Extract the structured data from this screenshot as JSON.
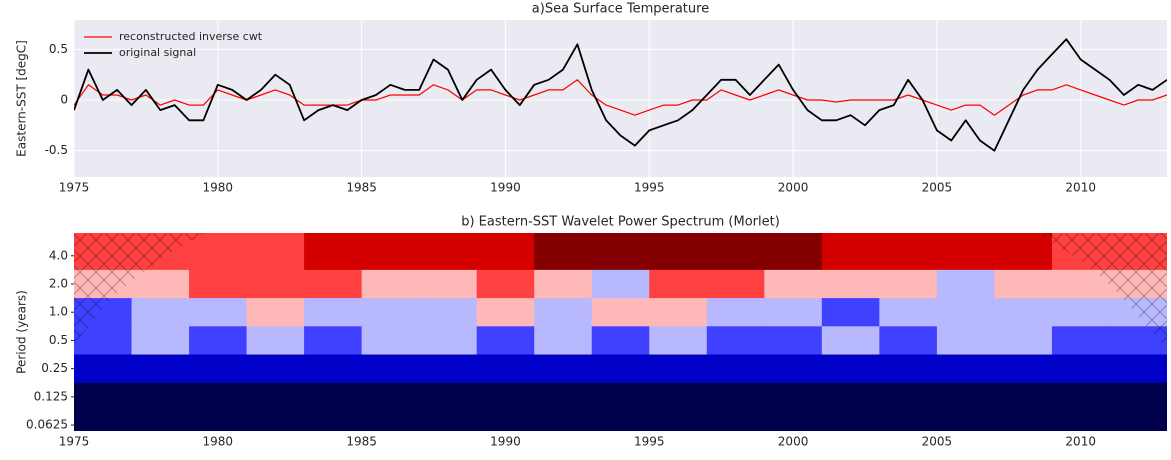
{
  "chart_data": [
    {
      "type": "line",
      "title": "a)Sea Surface Temperature",
      "y_label": "Eastern-SST [degC]",
      "x": [
        1975,
        1975.5,
        1976,
        1976.5,
        1977,
        1977.5,
        1978,
        1978.5,
        1979,
        1979.5,
        1980,
        1980.5,
        1981,
        1981.5,
        1982,
        1982.5,
        1983,
        1983.5,
        1984,
        1984.5,
        1985,
        1985.5,
        1986,
        1986.5,
        1987,
        1987.5,
        1988,
        1988.5,
        1989,
        1989.5,
        1990,
        1990.5,
        1991,
        1991.5,
        1992,
        1992.5,
        1993,
        1993.5,
        1994,
        1994.5,
        1995,
        1995.5,
        1996,
        1996.5,
        1997,
        1997.5,
        1998,
        1998.5,
        1999,
        1999.5,
        2000,
        2000.5,
        2001,
        2001.5,
        2002,
        2002.5,
        2003,
        2003.5,
        2004,
        2004.5,
        2005,
        2005.5,
        2006,
        2006.5,
        2007,
        2007.5,
        2008,
        2008.5,
        2009,
        2009.5,
        2010,
        2010.5,
        2011,
        2011.5,
        2012,
        2012.5,
        2013
      ],
      "series": [
        {
          "name": "reconstructed inverse cwt",
          "color": "#ff0000",
          "width": 1.2,
          "values": [
            -0.05,
            0.15,
            0.05,
            0.05,
            0.0,
            0.05,
            -0.05,
            0.0,
            -0.05,
            -0.05,
            0.1,
            0.05,
            0.0,
            0.05,
            0.1,
            0.05,
            -0.05,
            -0.05,
            -0.05,
            -0.05,
            0.0,
            0.0,
            0.05,
            0.05,
            0.05,
            0.15,
            0.1,
            0.0,
            0.1,
            0.1,
            0.05,
            0.0,
            0.05,
            0.1,
            0.1,
            0.2,
            0.05,
            -0.05,
            -0.1,
            -0.15,
            -0.1,
            -0.05,
            -0.05,
            0.0,
            0.0,
            0.1,
            0.05,
            0.0,
            0.05,
            0.1,
            0.05,
            0.0,
            0.0,
            -0.02,
            0.0,
            0.0,
            0.0,
            0.0,
            0.05,
            0.0,
            -0.05,
            -0.1,
            -0.05,
            -0.05,
            -0.15,
            -0.05,
            0.05,
            0.1,
            0.1,
            0.15,
            0.1,
            0.05,
            0.0,
            -0.05,
            0.0,
            0.0,
            0.05
          ]
        },
        {
          "name": "original signal",
          "color": "#000000",
          "width": 1.8,
          "values": [
            -0.1,
            0.3,
            0.0,
            0.1,
            -0.05,
            0.1,
            -0.1,
            -0.05,
            -0.2,
            -0.2,
            0.15,
            0.1,
            0.0,
            0.1,
            0.25,
            0.15,
            -0.2,
            -0.1,
            -0.05,
            -0.1,
            0.0,
            0.05,
            0.15,
            0.1,
            0.1,
            0.4,
            0.3,
            0.0,
            0.2,
            0.3,
            0.1,
            -0.05,
            0.15,
            0.2,
            0.3,
            0.55,
            0.1,
            -0.2,
            -0.35,
            -0.45,
            -0.3,
            -0.25,
            -0.2,
            -0.1,
            0.05,
            0.2,
            0.2,
            0.05,
            0.2,
            0.35,
            0.1,
            -0.1,
            -0.2,
            -0.2,
            -0.15,
            -0.25,
            -0.1,
            -0.05,
            0.2,
            0.0,
            -0.3,
            -0.4,
            -0.2,
            -0.4,
            -0.5,
            -0.2,
            0.1,
            0.3,
            0.45,
            0.6,
            0.4,
            0.3,
            0.2,
            0.05,
            0.15,
            0.1,
            0.2
          ]
        }
      ],
      "xlim": [
        1975,
        2013
      ],
      "xticks": [
        1975,
        1980,
        1985,
        1990,
        1995,
        2000,
        2005,
        2010
      ],
      "ylim": [
        -0.76,
        0.79
      ],
      "yticks": [
        -0.5,
        0.0,
        0.5
      ],
      "grid": true,
      "background": "#eaeaf2",
      "legend": "upper left"
    },
    {
      "type": "heatmap",
      "title": "b) Eastern-SST Wavelet Power Spectrum (Morlet)",
      "y_label": "Period (years)",
      "x": [
        1976,
        1978,
        1980,
        1982,
        1984,
        1986,
        1988,
        1990,
        1992,
        1994,
        1996,
        1998,
        2000,
        2002,
        2004,
        2006,
        2008,
        2010,
        2012
      ],
      "periods": [
        4,
        2,
        1,
        0.5,
        0.25,
        0.125,
        0.0625
      ],
      "z": [
        [
          5,
          5,
          5,
          5,
          6,
          6,
          6,
          6,
          7,
          7,
          7,
          7,
          7,
          6,
          6,
          6,
          6,
          5,
          5
        ],
        [
          4,
          4,
          5,
          5,
          5,
          4,
          4,
          5,
          4,
          3,
          5,
          5,
          4,
          4,
          4,
          3,
          4,
          4,
          4
        ],
        [
          2,
          3,
          3,
          4,
          3,
          3,
          3,
          4,
          3,
          4,
          4,
          3,
          3,
          2,
          3,
          3,
          3,
          3,
          3
        ],
        [
          2,
          3,
          2,
          3,
          2,
          3,
          3,
          2,
          3,
          2,
          3,
          2,
          2,
          3,
          2,
          3,
          3,
          2,
          2
        ],
        [
          1,
          1,
          1,
          1,
          1,
          1,
          1,
          1,
          1,
          1,
          1,
          1,
          1,
          1,
          1,
          1,
          1,
          1,
          1
        ],
        [
          0,
          0,
          0,
          0,
          0,
          0,
          0,
          0,
          0,
          0,
          0,
          0,
          0,
          0,
          0,
          0,
          0,
          0,
          0
        ],
        [
          0,
          0,
          0,
          0,
          0,
          0,
          0,
          0,
          0,
          0,
          0,
          0,
          0,
          0,
          0,
          0,
          0,
          0,
          0
        ]
      ],
      "colors": [
        "#00004c",
        "#0000c8",
        "#4040ff",
        "#b8b8ff",
        "#ffb8b8",
        "#ff4040",
        "#d40000",
        "#840000"
      ],
      "xlim": [
        1975,
        2013
      ],
      "xticks": [
        1975,
        1980,
        1985,
        1990,
        1995,
        2000,
        2005,
        2010
      ],
      "ylim": [
        0.054,
        7.0
      ],
      "yscale": "log",
      "yticks": [
        {
          "value": 4,
          "label": "4.0"
        },
        {
          "value": 2,
          "label": "2.0"
        },
        {
          "value": 1,
          "label": "1.0"
        },
        0.5,
        0.25,
        0.125,
        0.0625
      ]
    }
  ]
}
